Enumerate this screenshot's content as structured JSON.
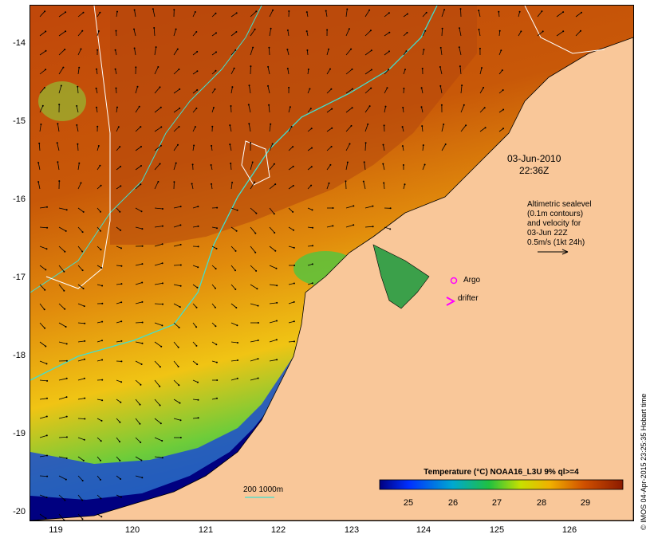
{
  "map": {
    "date_line1": "03-Jun-2010",
    "date_line2": "22:36Z",
    "velocity_note": [
      "Altimetric sealevel",
      "(0.1m contours)",
      "and velocity for",
      "03-Jun 22Z",
      "0.5m/s (1kt 24h)"
    ],
    "argo_label": "Argo",
    "drifter_label": "drifter",
    "isobath_label": "200 1000m",
    "colorbar_title": "Temperature (°C) NOAA16_L3U 9% ql>=4",
    "copyright": "© IMOS 04-Apr-2015 23:25:35 Hobart time",
    "y_ticks": [
      "-14",
      "-15",
      "-16",
      "-17",
      "-18",
      "-19",
      "-20"
    ],
    "x_ticks": [
      "119",
      "120",
      "121",
      "122",
      "123",
      "124",
      "125",
      "126"
    ],
    "colorbar_ticks": [
      "25",
      "26",
      "27",
      "28",
      "29"
    ],
    "colors": {
      "land": "#f9c799",
      "sst_cold": "#000080",
      "sst_warm": "#8b1a00",
      "argo_marker": "#ff00ff",
      "drifter_marker": "#ff00ff",
      "isobath_200": "#40e0d0",
      "sealevel_contour": "#ffffff"
    },
    "map_extent": {
      "lon": [
        118.6,
        126.7
      ],
      "lat": [
        -20.1,
        -13.6
      ]
    },
    "colorbar_range_c": [
      24.3,
      29.8
    ]
  }
}
